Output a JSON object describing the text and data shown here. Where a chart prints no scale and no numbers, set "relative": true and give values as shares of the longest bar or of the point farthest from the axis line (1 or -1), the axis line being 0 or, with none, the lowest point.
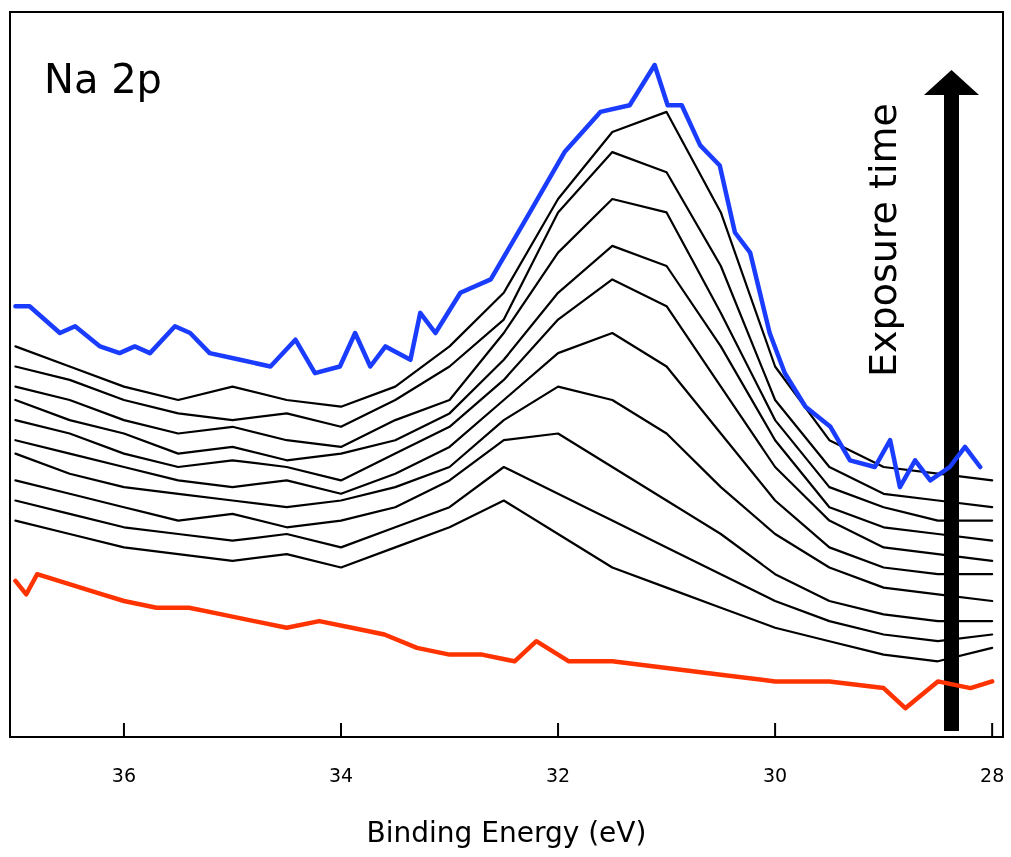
{
  "chart_data": {
    "type": "line",
    "relative": true,
    "xlabel": "Binding Energy (eV)",
    "annotations": [
      "Na 2p",
      "Exposure time"
    ],
    "xlim": [
      37.05,
      27.9
    ],
    "xticks": [
      36,
      34,
      32,
      30,
      28
    ],
    "grid": false,
    "series": [
      {
        "color": "#ff3300",
        "x": [
          37.0,
          36.9,
          36.8,
          36.6,
          36.4,
          36.2,
          36.0,
          35.7,
          35.4,
          35.1,
          34.8,
          34.5,
          34.2,
          33.9,
          33.6,
          33.3,
          33.0,
          32.7,
          32.4,
          32.2,
          31.9,
          31.5,
          31.0,
          30.5,
          30.0,
          29.5,
          29.0,
          28.8,
          28.5,
          28.2,
          28.0
        ],
        "values": [
          0.23,
          0.21,
          0.24,
          0.23,
          0.22,
          0.21,
          0.2,
          0.19,
          0.19,
          0.18,
          0.17,
          0.16,
          0.17,
          0.16,
          0.15,
          0.13,
          0.12,
          0.12,
          0.11,
          0.14,
          0.11,
          0.11,
          0.1,
          0.09,
          0.08,
          0.08,
          0.07,
          0.04,
          0.08,
          0.07,
          0.08
        ]
      },
      {
        "color": "#000000",
        "x": [
          37,
          36.5,
          36,
          35.5,
          35,
          34.5,
          34,
          33.5,
          33,
          32.5,
          32,
          31.5,
          31,
          30.5,
          30,
          29.5,
          29,
          28.5,
          28
        ],
        "values": [
          0.32,
          0.3,
          0.28,
          0.27,
          0.26,
          0.27,
          0.25,
          0.28,
          0.31,
          0.35,
          0.3,
          0.25,
          0.22,
          0.19,
          0.16,
          0.14,
          0.12,
          0.11,
          0.13
        ]
      },
      {
        "color": "#000000",
        "x": [
          37,
          36.5,
          36,
          35.5,
          35,
          34.5,
          34,
          33.5,
          33,
          32.5,
          32,
          31.5,
          31,
          30.5,
          30,
          29.5,
          29,
          28.5,
          28
        ],
        "values": [
          0.35,
          0.33,
          0.31,
          0.3,
          0.29,
          0.3,
          0.28,
          0.31,
          0.34,
          0.4,
          0.36,
          0.32,
          0.28,
          0.24,
          0.2,
          0.17,
          0.15,
          0.14,
          0.15
        ]
      },
      {
        "color": "#000000",
        "x": [
          37,
          36.5,
          36,
          35.5,
          35,
          34.5,
          34,
          33.5,
          33,
          32.5,
          32,
          31.5,
          31,
          30.5,
          30,
          29.5,
          29,
          28.5,
          28
        ],
        "values": [
          0.38,
          0.36,
          0.34,
          0.32,
          0.33,
          0.31,
          0.32,
          0.34,
          0.38,
          0.44,
          0.45,
          0.4,
          0.35,
          0.3,
          0.24,
          0.2,
          0.18,
          0.17,
          0.17
        ]
      },
      {
        "color": "#000000",
        "x": [
          37,
          36.5,
          36,
          35.5,
          35,
          34.5,
          34,
          33.5,
          33,
          32.5,
          32,
          31.5,
          31,
          30.5,
          30,
          29.5,
          29,
          28.5,
          28
        ],
        "values": [
          0.42,
          0.39,
          0.37,
          0.36,
          0.35,
          0.34,
          0.35,
          0.37,
          0.4,
          0.47,
          0.52,
          0.5,
          0.45,
          0.37,
          0.3,
          0.25,
          0.22,
          0.21,
          0.2
        ]
      },
      {
        "color": "#000000",
        "x": [
          37,
          36.5,
          36,
          35.5,
          35,
          34.5,
          34,
          33.5,
          33,
          32.5,
          32,
          31.5,
          31,
          30.5,
          30,
          29.5,
          29,
          28.5,
          28
        ],
        "values": [
          0.44,
          0.42,
          0.4,
          0.38,
          0.37,
          0.38,
          0.36,
          0.39,
          0.43,
          0.5,
          0.57,
          0.6,
          0.55,
          0.45,
          0.35,
          0.28,
          0.25,
          0.24,
          0.24
        ]
      },
      {
        "color": "#000000",
        "x": [
          37,
          36.5,
          36,
          35.5,
          35,
          34.5,
          34,
          33.5,
          33,
          32.5,
          32,
          31.5,
          31,
          30.5,
          30,
          29.5,
          29,
          28.5,
          28
        ],
        "values": [
          0.47,
          0.45,
          0.42,
          0.4,
          0.41,
          0.4,
          0.38,
          0.42,
          0.46,
          0.53,
          0.62,
          0.68,
          0.64,
          0.52,
          0.4,
          0.32,
          0.28,
          0.27,
          0.26
        ]
      },
      {
        "color": "#000000",
        "x": [
          37,
          36.5,
          36,
          35.5,
          35,
          34.5,
          34,
          33.5,
          33,
          32.5,
          32,
          31.5,
          31,
          30.5,
          30,
          29.5,
          29,
          28.5,
          28
        ],
        "values": [
          0.5,
          0.47,
          0.45,
          0.42,
          0.43,
          0.41,
          0.42,
          0.44,
          0.48,
          0.56,
          0.66,
          0.73,
          0.7,
          0.58,
          0.44,
          0.34,
          0.31,
          0.3,
          0.29
        ]
      },
      {
        "color": "#000000",
        "x": [
          37,
          36.5,
          36,
          35.5,
          35,
          34.5,
          34,
          33.5,
          33,
          32.5,
          32,
          31.5,
          31,
          30.5,
          30,
          29.5,
          29,
          28.5,
          28
        ],
        "values": [
          0.52,
          0.5,
          0.47,
          0.45,
          0.46,
          0.44,
          0.43,
          0.47,
          0.5,
          0.6,
          0.72,
          0.8,
          0.78,
          0.63,
          0.47,
          0.37,
          0.34,
          0.32,
          0.32
        ]
      },
      {
        "color": "#000000",
        "x": [
          37,
          36.5,
          36,
          35.5,
          35,
          34.5,
          34,
          33.5,
          33,
          32.5,
          32,
          31.5,
          31,
          30.5,
          30,
          29.5,
          29,
          28.5,
          28
        ],
        "values": [
          0.55,
          0.53,
          0.5,
          0.48,
          0.47,
          0.48,
          0.46,
          0.5,
          0.55,
          0.62,
          0.78,
          0.87,
          0.84,
          0.7,
          0.5,
          0.4,
          0.36,
          0.35,
          0.34
        ]
      },
      {
        "color": "#000000",
        "x": [
          37,
          36.5,
          36,
          35.5,
          35,
          34.5,
          34,
          33.5,
          33,
          32.5,
          32,
          31.5,
          31,
          30.5,
          30,
          29.5,
          29,
          28.5,
          28
        ],
        "values": [
          0.58,
          0.55,
          0.52,
          0.5,
          0.52,
          0.5,
          0.49,
          0.52,
          0.58,
          0.66,
          0.8,
          0.9,
          0.93,
          0.78,
          0.55,
          0.44,
          0.4,
          0.39,
          0.38
        ]
      },
      {
        "color": "#1a3cff",
        "x": [
          37.0,
          36.87,
          36.59,
          36.45,
          36.22,
          36.04,
          35.9,
          35.76,
          35.53,
          35.39,
          35.21,
          34.93,
          34.65,
          34.42,
          34.24,
          34.01,
          33.87,
          33.73,
          33.59,
          33.36,
          33.27,
          33.13,
          32.9,
          32.62,
          32.26,
          31.94,
          31.61,
          31.34,
          31.11,
          30.99,
          30.86,
          30.69,
          30.51,
          30.37,
          30.23,
          30.05,
          29.91,
          29.72,
          29.49,
          29.31,
          29.08,
          28.94,
          28.85,
          28.71,
          28.57,
          28.39,
          28.25,
          28.11
        ],
        "values": [
          0.64,
          0.64,
          0.6,
          0.61,
          0.58,
          0.57,
          0.58,
          0.57,
          0.61,
          0.6,
          0.57,
          0.56,
          0.55,
          0.59,
          0.54,
          0.55,
          0.6,
          0.55,
          0.58,
          0.56,
          0.63,
          0.6,
          0.66,
          0.68,
          0.78,
          0.87,
          0.93,
          0.94,
          1.0,
          0.94,
          0.94,
          0.88,
          0.85,
          0.75,
          0.72,
          0.6,
          0.54,
          0.49,
          0.46,
          0.41,
          0.4,
          0.44,
          0.37,
          0.41,
          0.38,
          0.4,
          0.43,
          0.4
        ]
      }
    ]
  }
}
